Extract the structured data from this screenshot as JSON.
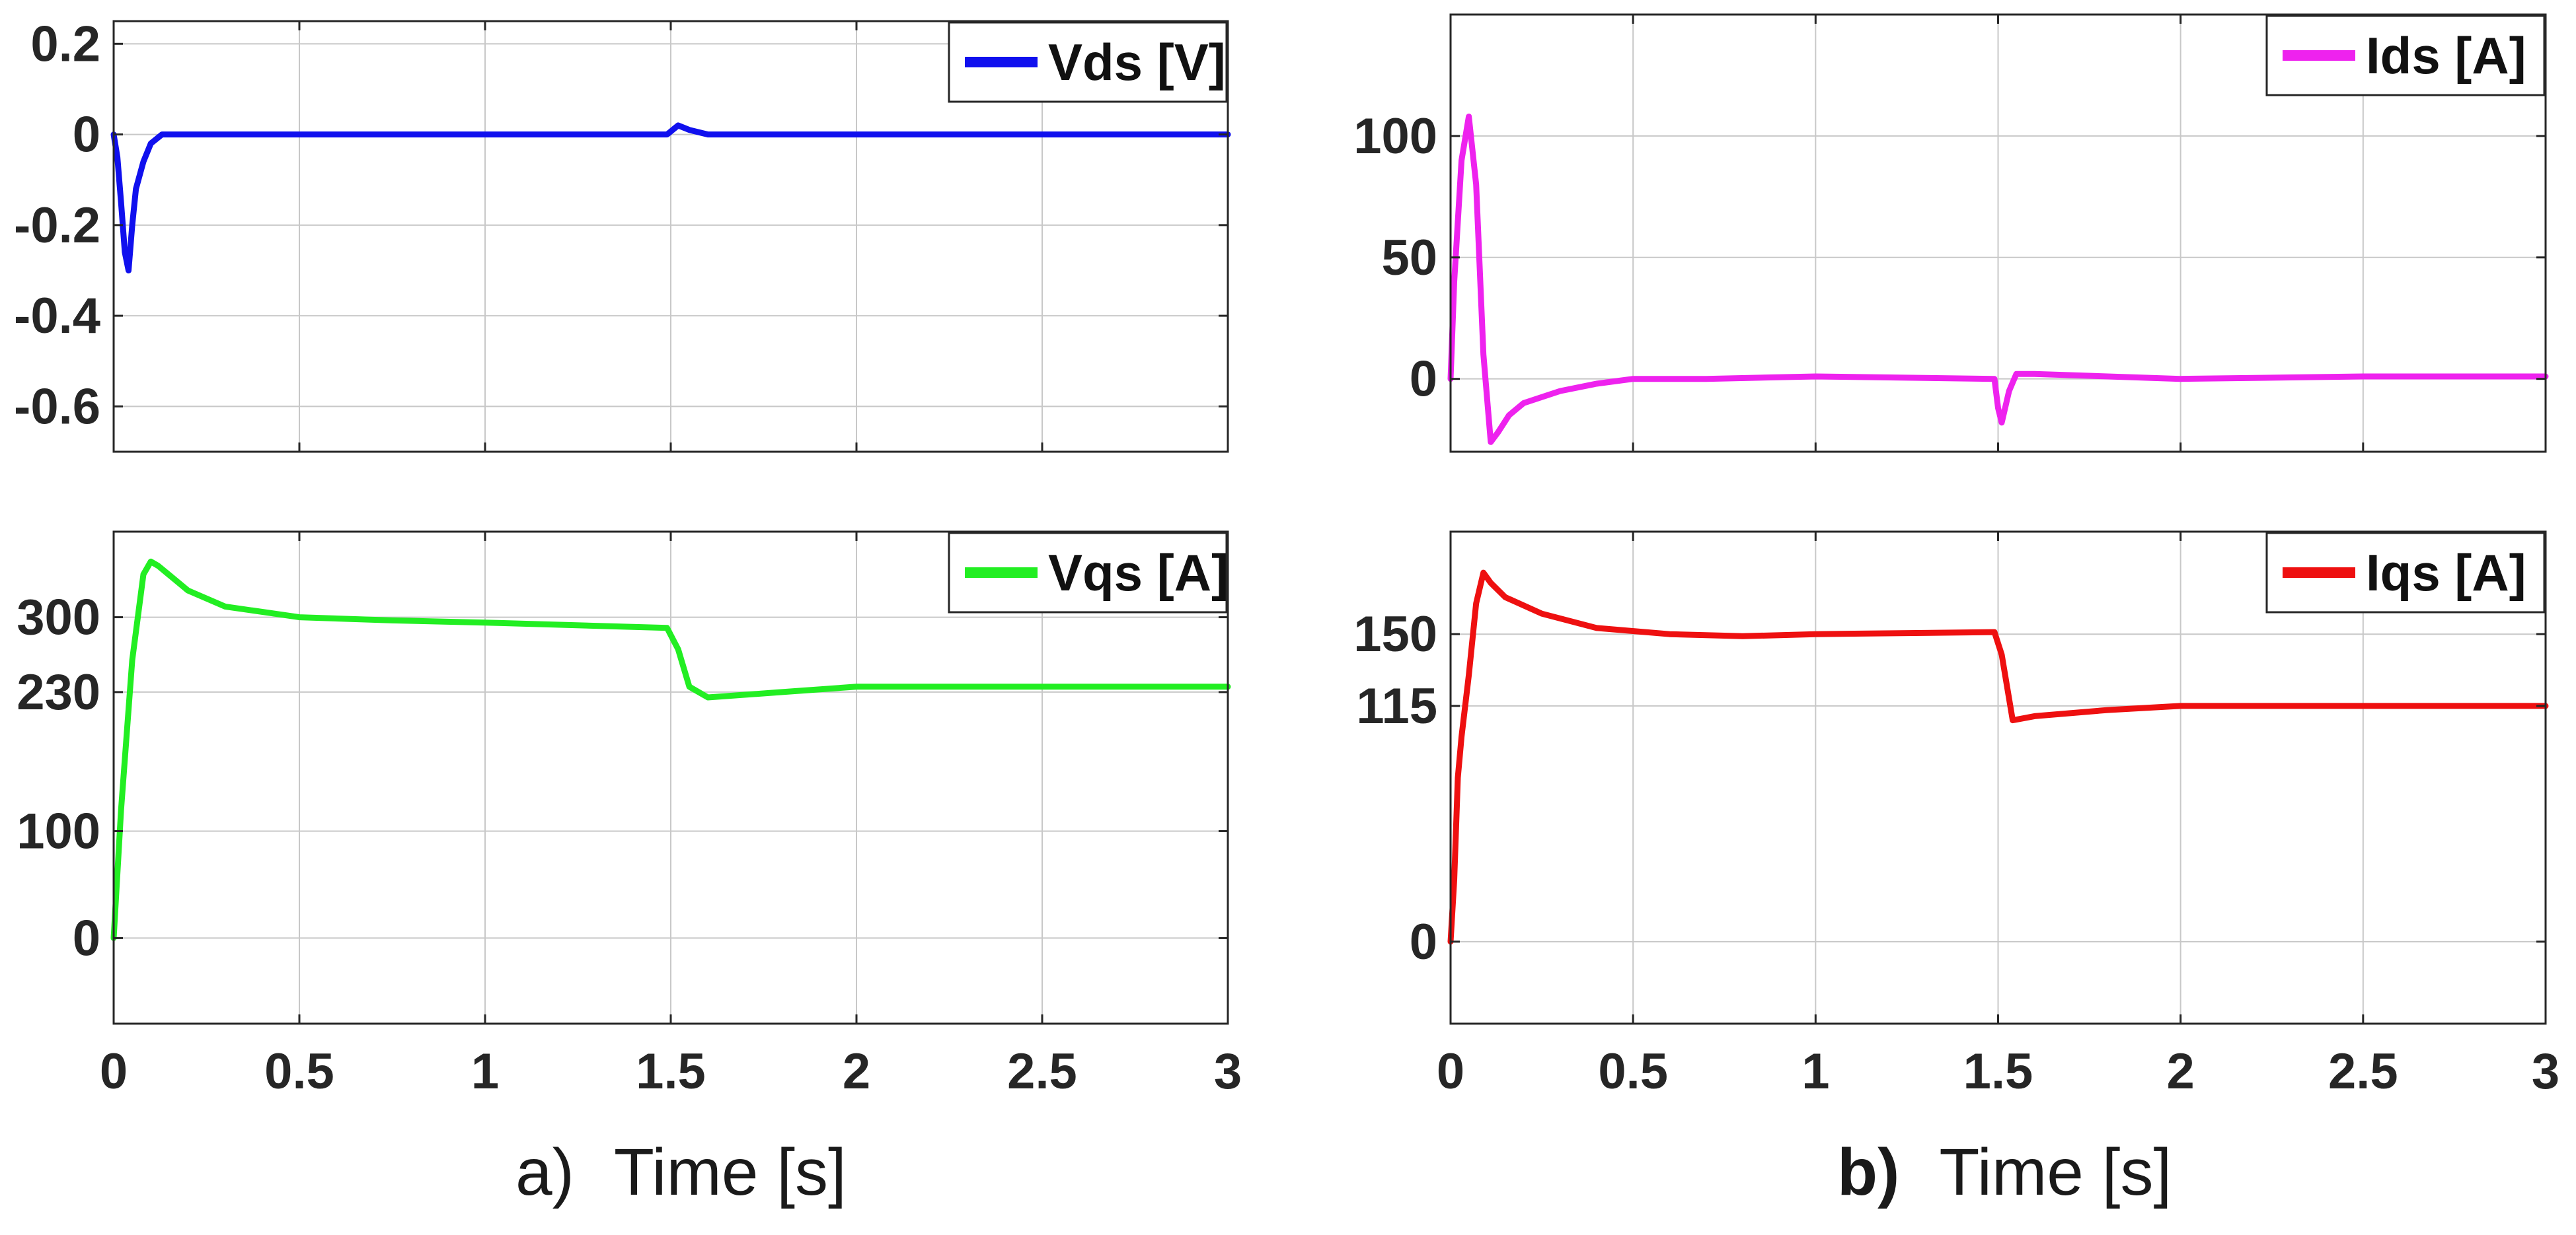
{
  "panel_captions": [
    {
      "letter": "a)",
      "text": "Time [s]"
    },
    {
      "letter": "b)",
      "text": "Time [s]"
    }
  ],
  "chart_data": [
    {
      "type": "line",
      "panel": "a-top",
      "title": "",
      "xlabel": "",
      "ylabel": "",
      "xlim": [
        0,
        3
      ],
      "ylim": [
        -0.7,
        0.25
      ],
      "xticks": [
        0,
        0.5,
        1,
        1.5,
        2,
        2.5,
        3
      ],
      "xtick_labels": [
        "",
        "",
        "",
        "",
        "",
        "",
        ""
      ],
      "yticks": [
        0.2,
        0,
        -0.2,
        -0.4,
        -0.6
      ],
      "ytick_labels": [
        "0.2",
        "0",
        "-0.2",
        "-0.4",
        "-0.6"
      ],
      "grid": true,
      "legend_position": "top-right",
      "series": [
        {
          "name": "Vds [V]",
          "color": "#1010ee",
          "x": [
            0,
            0.01,
            0.02,
            0.03,
            0.04,
            0.05,
            0.06,
            0.08,
            0.1,
            0.13,
            0.2,
            0.5,
            1,
            1.49,
            1.52,
            1.55,
            1.6,
            2,
            2.5,
            3
          ],
          "y": [
            0,
            -0.05,
            -0.15,
            -0.26,
            -0.3,
            -0.2,
            -0.12,
            -0.06,
            -0.02,
            0,
            0,
            0,
            0,
            0,
            0.02,
            0.01,
            0,
            0,
            0,
            0
          ]
        }
      ]
    },
    {
      "type": "line",
      "panel": "a-bottom",
      "title": "",
      "xlabel": "",
      "ylabel": "",
      "xlim": [
        0,
        3
      ],
      "ylim": [
        -80,
        380
      ],
      "xticks": [
        0,
        0.5,
        1,
        1.5,
        2,
        2.5,
        3
      ],
      "xtick_labels": [
        "0",
        "0.5",
        "1",
        "1.5",
        "2",
        "2.5",
        "3"
      ],
      "yticks": [
        0,
        100,
        230,
        300
      ],
      "ytick_labels": [
        "0",
        "100",
        "230",
        "300"
      ],
      "grid": true,
      "legend_position": "top-right",
      "series": [
        {
          "name": "Vqs [A]",
          "color": "#22ee22",
          "x": [
            0,
            0.02,
            0.05,
            0.08,
            0.1,
            0.12,
            0.2,
            0.3,
            0.5,
            0.75,
            1,
            1.49,
            1.52,
            1.55,
            1.6,
            1.8,
            2,
            2.5,
            3
          ],
          "y": [
            0,
            120,
            260,
            340,
            352,
            348,
            325,
            310,
            300,
            297,
            295,
            290,
            270,
            235,
            225,
            230,
            235,
            235,
            235
          ]
        }
      ]
    },
    {
      "type": "line",
      "panel": "b-top",
      "title": "",
      "xlabel": "",
      "ylabel": "",
      "xlim": [
        0,
        3
      ],
      "ylim": [
        -30,
        150
      ],
      "xticks": [
        0,
        0.5,
        1,
        1.5,
        2,
        2.5,
        3
      ],
      "xtick_labels": [
        "",
        "",
        "",
        "",
        "",
        "",
        ""
      ],
      "yticks": [
        0,
        50,
        100
      ],
      "ytick_labels": [
        "0",
        "50",
        "100"
      ],
      "grid": true,
      "legend_position": "top-right",
      "series": [
        {
          "name": "Ids [A]",
          "color": "#ee22ee",
          "x": [
            0,
            0.01,
            0.03,
            0.05,
            0.07,
            0.09,
            0.11,
            0.13,
            0.16,
            0.2,
            0.3,
            0.4,
            0.5,
            0.7,
            1,
            1.49,
            1.5,
            1.51,
            1.53,
            1.55,
            1.6,
            2,
            2.5,
            3
          ],
          "y": [
            0,
            40,
            90,
            108,
            80,
            10,
            -26,
            -22,
            -15,
            -10,
            -5,
            -2,
            0,
            0,
            1,
            0,
            -12,
            -18,
            -5,
            2,
            2,
            0,
            1,
            1
          ]
        }
      ]
    },
    {
      "type": "line",
      "panel": "b-bottom",
      "title": "",
      "xlabel": "",
      "ylabel": "",
      "xlim": [
        0,
        3
      ],
      "ylim": [
        -40,
        200
      ],
      "xticks": [
        0,
        0.5,
        1,
        1.5,
        2,
        2.5,
        3
      ],
      "xtick_labels": [
        "0",
        "0.5",
        "1",
        "1.5",
        "2",
        "2.5",
        "3"
      ],
      "yticks": [
        0,
        115,
        150
      ],
      "ytick_labels": [
        "0",
        "115",
        "150"
      ],
      "grid": true,
      "legend_position": "top-right",
      "series": [
        {
          "name": "Iqs [A]",
          "color": "#ee1010",
          "x": [
            0,
            0.01,
            0.02,
            0.03,
            0.05,
            0.07,
            0.09,
            0.11,
            0.15,
            0.25,
            0.4,
            0.6,
            0.8,
            1,
            1.49,
            1.51,
            1.54,
            1.6,
            1.8,
            2,
            2.5,
            3
          ],
          "y": [
            0,
            30,
            80,
            100,
            130,
            165,
            180,
            175,
            168,
            160,
            153,
            150,
            149,
            150,
            151,
            140,
            108,
            110,
            113,
            115,
            115,
            115
          ]
        }
      ]
    }
  ]
}
